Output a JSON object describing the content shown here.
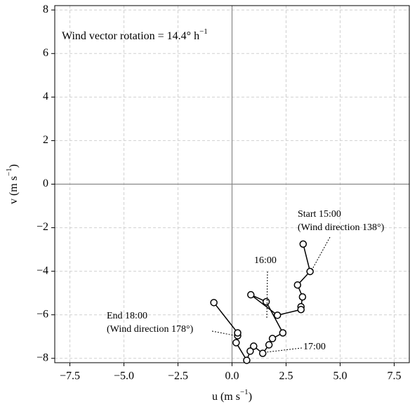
{
  "chart_data": {
    "type": "line",
    "annotation": {
      "text": "Wind vector rotation = 14.4° h",
      "sup": "−1"
    },
    "xlabel": {
      "text": "u (m s",
      "sup": "−1",
      "tail": ")"
    },
    "ylabel": {
      "text": "v (m s",
      "sup": "−1",
      "tail": ")"
    },
    "xlim": [
      -8.2,
      8.2
    ],
    "ylim": [
      -8.2,
      8.2
    ],
    "xticks": [
      {
        "value": -7.5,
        "label": "−7.5"
      },
      {
        "value": -5,
        "label": "−5.0"
      },
      {
        "value": -2.5,
        "label": "−2.5"
      },
      {
        "value": 0,
        "label": "0.0"
      },
      2.5,
      {
        "value": 5,
        "label": "5.0"
      },
      7.5
    ],
    "yticks": [
      {
        "value": -8,
        "label": "−8"
      },
      {
        "value": -6,
        "label": "−6"
      },
      {
        "value": -4,
        "label": "−4"
      },
      {
        "value": -2,
        "label": "−2"
      },
      0,
      2,
      4,
      6,
      8
    ],
    "grid": true,
    "color": "#000000",
    "x": [
      3.29,
      3.61,
      3.03,
      3.26,
      3.19,
      3.19,
      2.1,
      0.87,
      1.58,
      2.35,
      1.87,
      1.71,
      1.42,
      1.0,
      0.84,
      0.68,
      0.19,
      0.26,
      0.26,
      -0.84
    ],
    "values": [
      -2.75,
      -4.01,
      -4.63,
      -5.18,
      -5.63,
      -5.76,
      -6.02,
      -5.08,
      -5.4,
      -6.83,
      -7.09,
      -7.38,
      -7.77,
      -7.44,
      -7.67,
      -8.09,
      -7.28,
      -6.96,
      -6.83,
      -5.44
    ],
    "labels": [
      "Start 15:00",
      "(Wind direction 138°)",
      "16:00",
      "17:00",
      "End 18:00",
      "(Wind direction 178°)"
    ]
  }
}
